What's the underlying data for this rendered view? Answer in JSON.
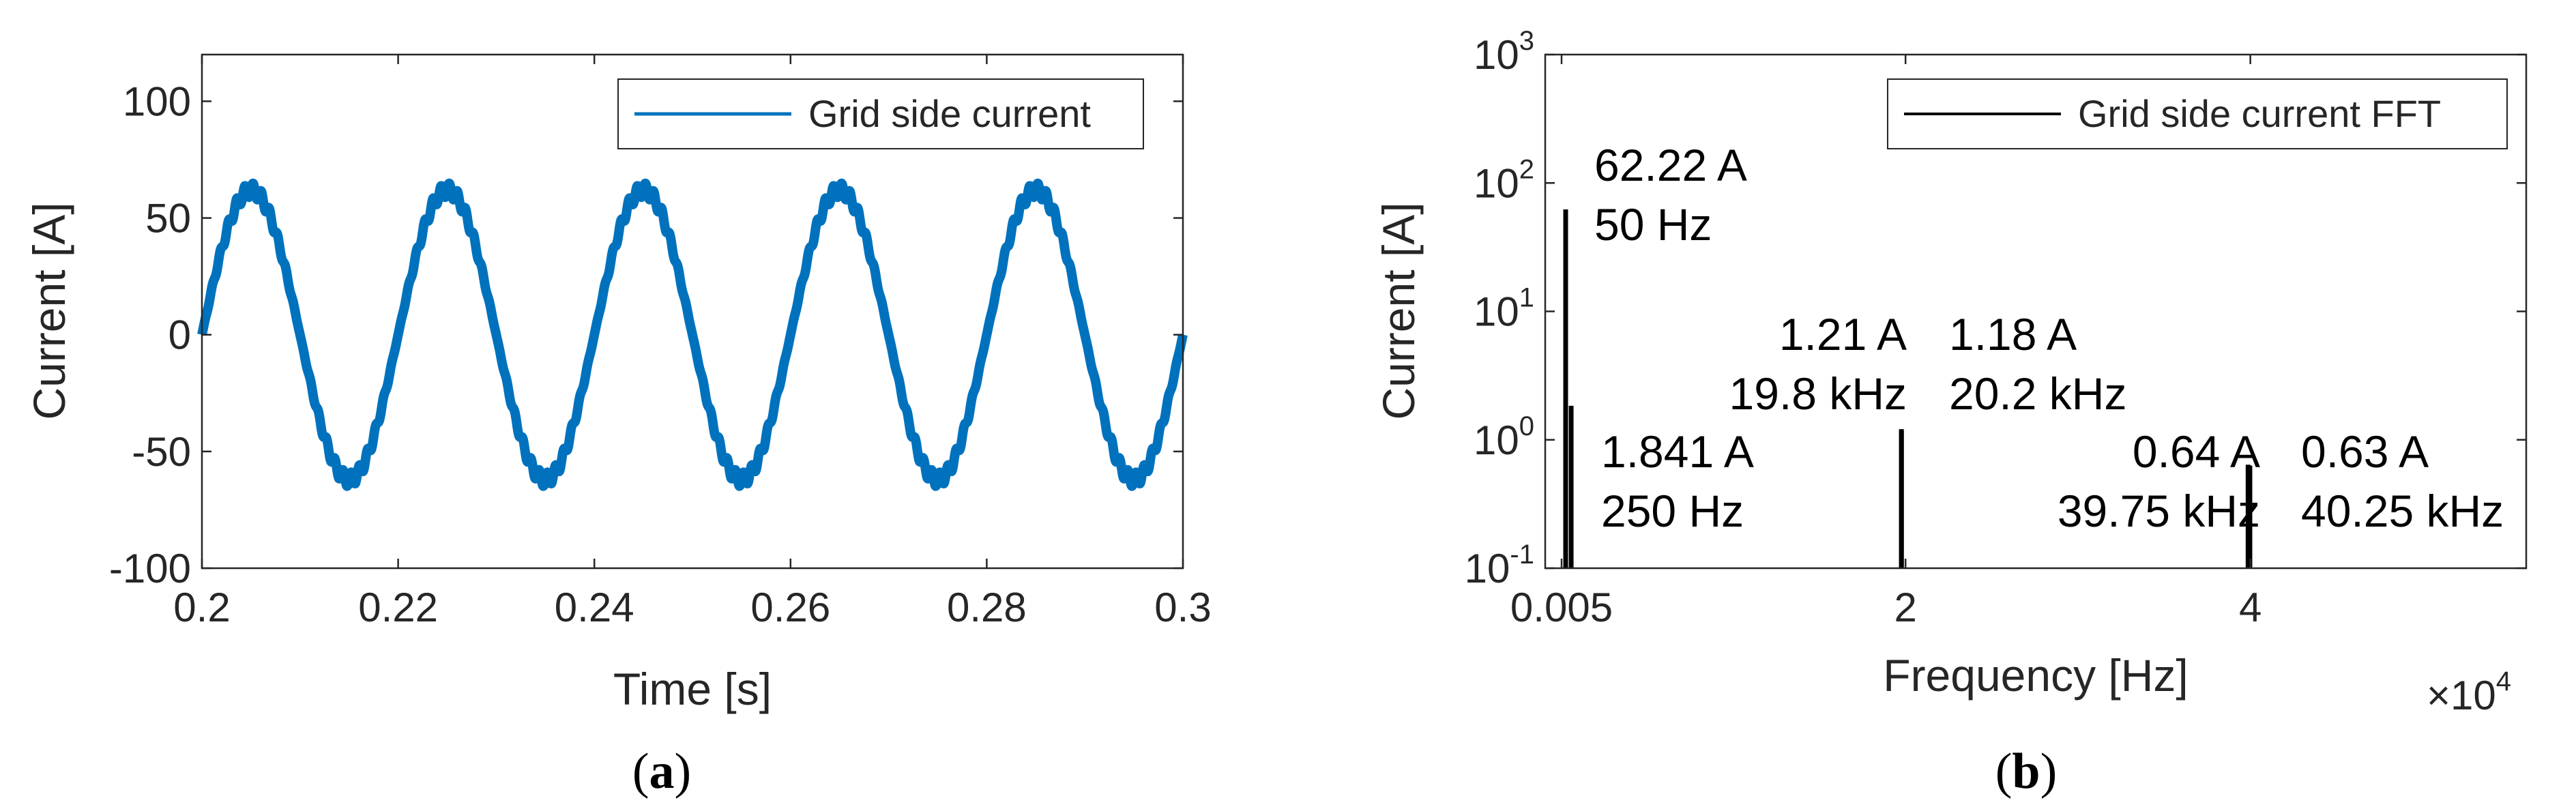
{
  "chart_data": [
    {
      "type": "line",
      "caption_letter": "a",
      "xlabel": "Time [s]",
      "ylabel": "Current [A]",
      "xlim": [
        0.2,
        0.3
      ],
      "ylim": [
        -100,
        120
      ],
      "xticks": [
        0.2,
        0.22,
        0.24,
        0.26,
        0.28,
        0.3
      ],
      "xtick_labels": [
        "0.2",
        "0.22",
        "0.24",
        "0.26",
        "0.28",
        "0.3"
      ],
      "yticks": [
        -100,
        -50,
        0,
        50,
        100
      ],
      "ytick_labels": [
        "-100",
        "-50",
        "0",
        "50",
        "100"
      ],
      "legend_position": "top-right",
      "grid": false,
      "series": [
        {
          "name": "Grid side current",
          "color": "#0072BD",
          "amplitude": 62,
          "frequency_hz": 50,
          "ripple_amplitude": 3,
          "x_start": 0.2,
          "x_end": 0.3
        }
      ]
    },
    {
      "type": "bar",
      "caption_letter": "b",
      "xlabel": "Frequency [Hz]",
      "ylabel": "Current [A]",
      "x_multiplier_base": "×10",
      "x_multiplier_exp": "4",
      "xlim": [
        -900,
        56000
      ],
      "ylim": [
        0.1,
        1000
      ],
      "yscale": "log",
      "xticks": [
        50,
        20000,
        40000
      ],
      "xtick_labels": [
        "0.005",
        "2",
        "4"
      ],
      "yticks": [
        0.1,
        1,
        10,
        100,
        1000
      ],
      "ytick_base": "10",
      "ytick_exps": [
        "-1",
        "0",
        "1",
        "2",
        "3"
      ],
      "legend_position": "top-right",
      "grid": false,
      "series": [
        {
          "name": "Grid side current FFT",
          "color": "#000000",
          "x": [
            50,
            250,
            19800,
            20200,
            39750,
            40250
          ],
          "values": [
            62.22,
            1.841,
            1.21,
            1.18,
            0.64,
            0.63
          ]
        }
      ],
      "annotations": [
        {
          "line1": "62.22 A",
          "line2": "50 Hz"
        },
        {
          "line1": "1.841 A",
          "line2": "250 Hz"
        },
        {
          "line1": "1.21 A",
          "line2": "19.8 kHz"
        },
        {
          "line1": "1.18 A",
          "line2": "20.2 kHz"
        },
        {
          "line1": "0.64 A",
          "line2": "39.75 kHz"
        },
        {
          "line1": "0.63 A",
          "line2": "40.25 kHz"
        }
      ]
    }
  ]
}
